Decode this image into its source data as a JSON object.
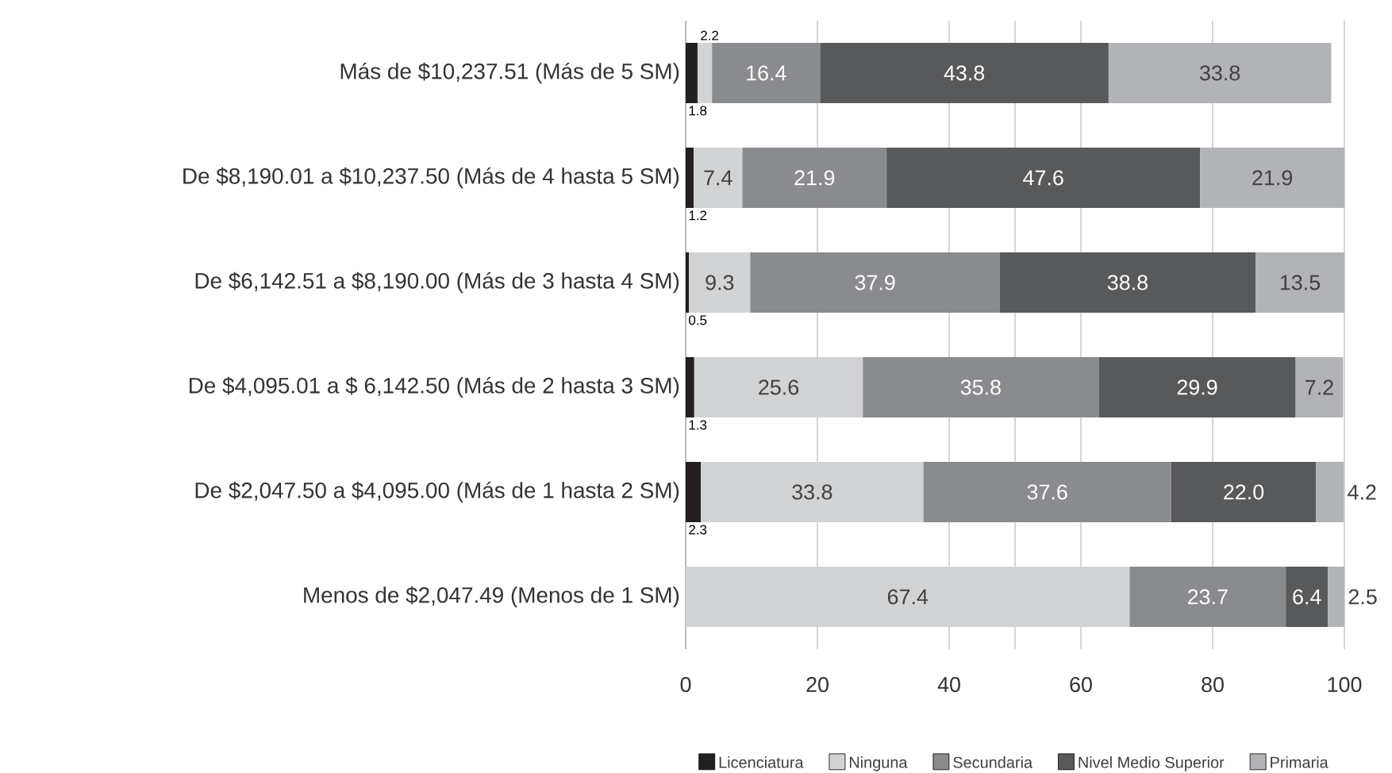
{
  "chart_data": {
    "type": "bar",
    "orientation": "horizontal",
    "stacked": true,
    "categories": [
      "Más de $10,237.51 (Más de 5 SM)",
      "De $8,190.01 a $10,237.50 (Más de 4 hasta 5 SM)",
      "De $6,142.51 a $8,190.00 (Más de 3 hasta 4 SM)",
      "De $4,095.01 a $ 6,142.50 (Más de 2 hasta 3 SM)",
      "De $2,047.50 a $4,095.00 (Más de 1 hasta 2 SM)",
      "Menos de $2,047.49 (Menos de 1 SM)"
    ],
    "series": [
      {
        "name": "Licenciatura",
        "color": "#231f20",
        "values": [
          1.8,
          1.2,
          0.5,
          1.3,
          2.3,
          null
        ],
        "value_labels": [
          "1.8",
          "1.2",
          "0.5",
          "1.3",
          "2.3",
          null
        ]
      },
      {
        "name": "Ninguna",
        "color": "#d1d3d4",
        "values": [
          2.2,
          7.4,
          9.3,
          25.6,
          33.8,
          67.4
        ],
        "value_labels": [
          "2.2",
          "7.4",
          "9.3",
          "25.6",
          "33.8",
          "67.4"
        ]
      },
      {
        "name": "Secundaria",
        "color": "#8a8b8e",
        "values": [
          16.4,
          21.9,
          37.9,
          35.8,
          37.6,
          23.7
        ],
        "value_labels": [
          "16.4",
          "21.9",
          "37.9",
          "35.8",
          "37.6",
          "23.7"
        ]
      },
      {
        "name": "Nivel Medio Superior",
        "color": "#58595b",
        "values": [
          43.8,
          47.6,
          38.8,
          29.9,
          22.0,
          6.4
        ],
        "value_labels": [
          "43.8",
          "47.6",
          "38.8",
          "29.9",
          "22.0",
          "6.4"
        ]
      },
      {
        "name": "Primaria",
        "color": "#b1b3b6",
        "values": [
          33.8,
          21.9,
          13.5,
          7.2,
          4.2,
          2.5
        ],
        "value_labels": [
          "33.8",
          "21.9",
          "13.5",
          "7.2",
          "4.2",
          "2.5"
        ]
      }
    ],
    "xlim": [
      0,
      100
    ],
    "xticks": [
      0,
      20,
      40,
      {
        "value": 50,
        "label": null
      },
      60,
      80,
      100
    ],
    "grid": "x",
    "legend": "bottom"
  }
}
